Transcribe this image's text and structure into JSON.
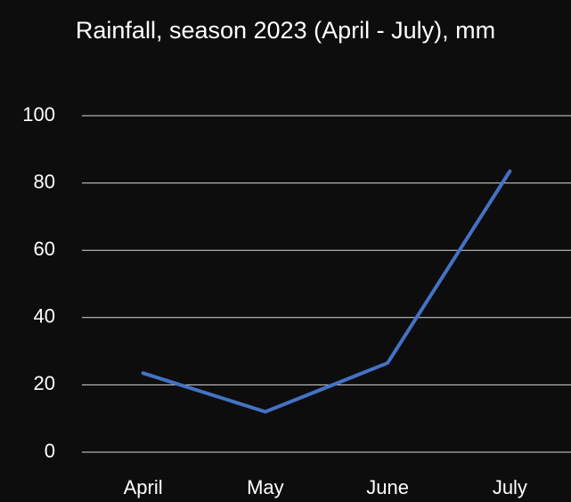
{
  "chart_data": {
    "type": "line",
    "title": "Rainfall, season 2023 (April - July), mm",
    "categories": [
      "April",
      "May",
      "June",
      "July"
    ],
    "values": [
      23.5,
      12,
      26.5,
      83.5
    ],
    "color": "#4472c4",
    "ylim": [
      0,
      100
    ],
    "yticks": [
      0,
      20,
      40,
      60,
      80,
      100
    ],
    "grid": true
  }
}
